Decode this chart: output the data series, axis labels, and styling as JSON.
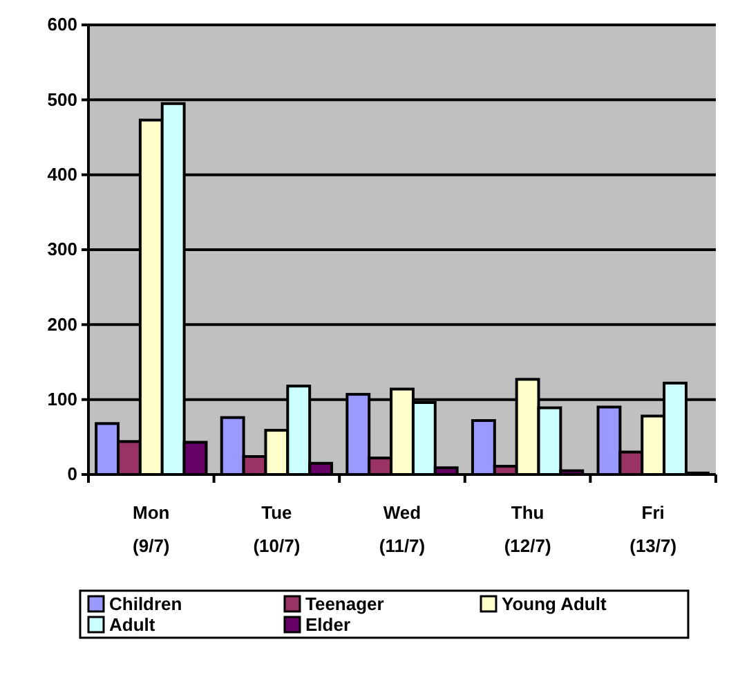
{
  "chart_data": {
    "type": "bar",
    "categories": [
      "Mon (9/7)",
      "Tue (10/7)",
      "Wed (11/7)",
      "Thu (12/7)",
      "Fri (13/7)"
    ],
    "series": [
      {
        "name": "Children",
        "color": "#9999ff",
        "values": [
          68,
          76,
          107,
          72,
          90
        ]
      },
      {
        "name": "Teenager",
        "color": "#993366",
        "values": [
          44,
          24,
          22,
          11,
          30
        ]
      },
      {
        "name": "Young Adult",
        "color": "#ffffcc",
        "values": [
          473,
          59,
          114,
          127,
          78
        ]
      },
      {
        "name": "Adult",
        "color": "#ccffff",
        "values": [
          495,
          118,
          96,
          89,
          122
        ]
      },
      {
        "name": "Elder",
        "color": "#660066",
        "values": [
          43,
          15,
          9,
          5,
          2
        ]
      }
    ],
    "ylim": [
      0,
      600
    ],
    "yticks": [
      0,
      100,
      200,
      300,
      400,
      500,
      600
    ],
    "grid": "y",
    "legend": "bottom"
  }
}
